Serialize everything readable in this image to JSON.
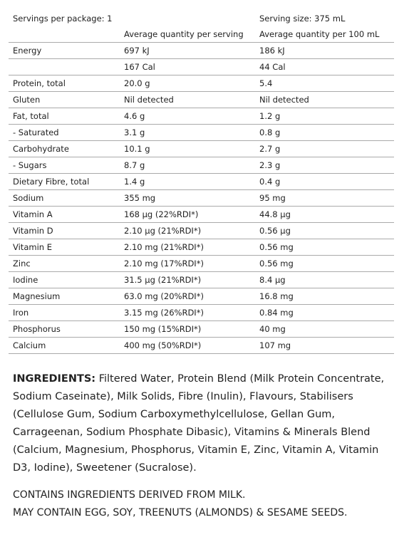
{
  "header": {
    "servings_per_package": "Servings per package: 1",
    "serving_size": "Serving size: 375 mL",
    "col_per_serving": "Average quantity per serving",
    "col_per_100ml": "Average quantity per 100 mL"
  },
  "table": {
    "rows": [
      {
        "label": "Energy",
        "per_serving": "697 kJ",
        "per_100ml": "186 kJ"
      },
      {
        "per_serving": "167 Cal",
        "per_100ml": "44 Cal"
      },
      {
        "label": "Protein, total",
        "per_serving": "20.0 g",
        "per_100ml": "5.4"
      },
      {
        "label": "Gluten",
        "per_serving": "Nil detected",
        "per_100ml": "Nil detected"
      },
      {
        "label": "Fat, total",
        "per_serving": "4.6 g",
        "per_100ml": "1.2 g"
      },
      {
        "label": "- Saturated",
        "per_serving": "3.1 g",
        "per_100ml": "0.8 g"
      },
      {
        "label": "Carbohydrate",
        "per_serving": "10.1 g",
        "per_100ml": "2.7 g"
      },
      {
        "label": "- Sugars",
        "per_serving": "8.7 g",
        "per_100ml": "2.3 g"
      },
      {
        "label": "Dietary Fibre, total",
        "per_serving": "1.4 g",
        "per_100ml": "0.4 g"
      },
      {
        "label": "Sodium",
        "per_serving": "355 mg",
        "per_100ml": "95 mg"
      },
      {
        "label": "Vitamin A",
        "per_serving": "168 µg (22%RDI*)",
        "per_100ml": "44.8 µg"
      },
      {
        "label": "Vitamin D",
        "per_serving": "2.10 µg (21%RDI*)",
        "per_100ml": "0.56 µg"
      },
      {
        "label": "Vitamin E",
        "per_serving": "2.10 mg (21%RDI*)",
        "per_100ml": "0.56 mg"
      },
      {
        "label": "Zinc",
        "per_serving": "2.10 mg (17%RDI*)",
        "per_100ml": "0.56 mg"
      },
      {
        "label": "Iodine",
        "per_serving": "31.5 µg (21%RDI*)",
        "per_100ml": "8.4 µg"
      },
      {
        "label": "Magnesium",
        "per_serving": "63.0 mg (20%RDI*)",
        "per_100ml": "16.8 mg"
      },
      {
        "label": "Iron",
        "per_serving": "3.15 mg (26%RDI*)",
        "per_100ml": "0.84 mg"
      },
      {
        "label": "Phosphorus",
        "per_serving": "150 mg (15%RDI*)",
        "per_100ml": "40 mg"
      },
      {
        "label": "Calcium",
        "per_serving": "400 mg (50%RDI*)",
        "per_100ml": "107 mg"
      }
    ]
  },
  "ingredients": {
    "heading": "INGREDIENTS:",
    "text": "Filtered Water, Protein Blend (Milk Protein Concentrate, Sodium Caseinate), Milk Solids, Fibre (Inulin), Flavours, Stabilisers (Cellulose Gum, Sodium Carboxymethylcellulose, Gellan Gum, Carrageenan, Sodium Phosphate Dibasic), Vitamins & Minerals Blend (Calcium, Magnesium, Phosphorus, Vitamin E, Zinc, Vitamin A, Vitamin D3, Iodine), Sweetener (Sucralose)."
  },
  "allergens": [
    "CONTAINS INGREDIENTS DERIVED FROM MILK.",
    "MAY CONTAIN EGG, SOY, TREENUTS (ALMONDS) & SESAME SEEDS."
  ]
}
